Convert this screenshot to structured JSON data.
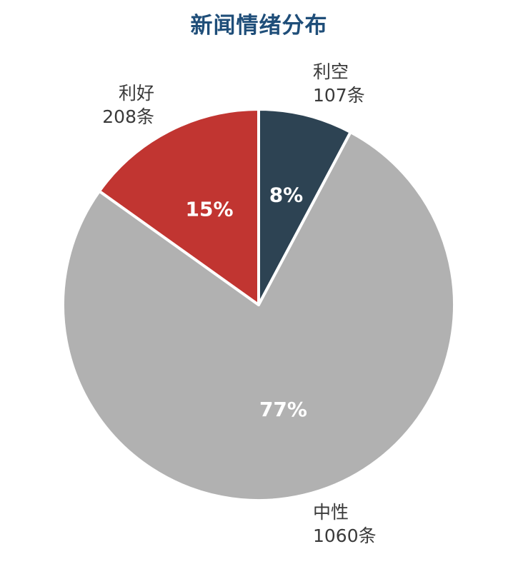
{
  "chart_data": {
    "type": "pie",
    "title": "新闻情绪分布",
    "slices": [
      {
        "name": "利空",
        "count_label": "107条",
        "value": 107,
        "percent_label": "8%",
        "color": "#2d4353"
      },
      {
        "name": "中性",
        "count_label": "1060条",
        "value": 1060,
        "percent_label": "77%",
        "color": "#b1b1b1"
      },
      {
        "name": "利好",
        "count_label": "208条",
        "value": 208,
        "percent_label": "15%",
        "color": "#c13531"
      }
    ],
    "start": "12 o'clock",
    "direction": "clockwise",
    "legend": "none"
  }
}
